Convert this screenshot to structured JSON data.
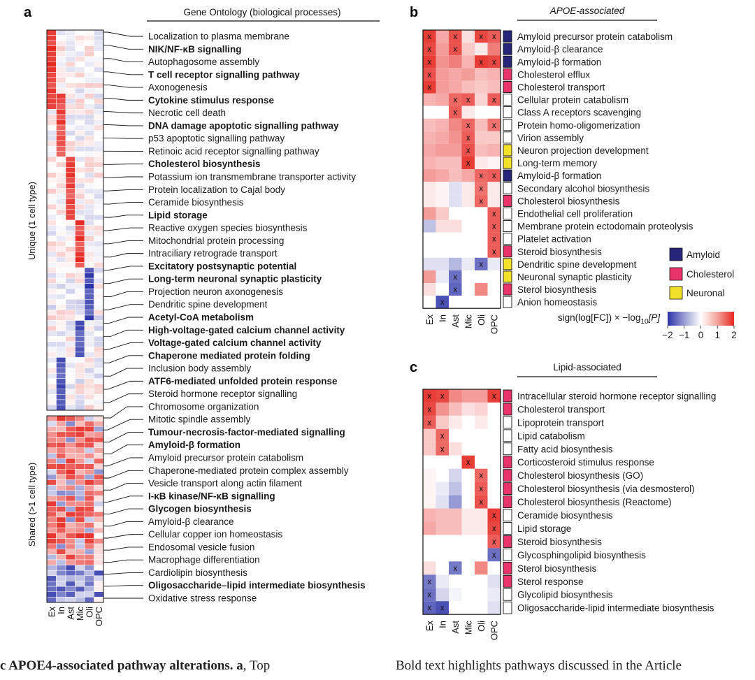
{
  "panel_a": {
    "letter": "a",
    "header": "Gene Ontology (biological processes)",
    "unique_label": "Unique (1 cell type)",
    "shared_label": "Shared (>1 cell type)",
    "columns": [
      "Ex",
      "In",
      "Ast",
      "Mic",
      "Oli",
      "OPC"
    ],
    "labels": [
      {
        "text": "Localization to plasma membrane",
        "bold": false
      },
      {
        "text": "NIK/NF-κB signalling",
        "bold": true
      },
      {
        "text": "Autophagosome assembly",
        "bold": false
      },
      {
        "text": "T cell receptor signalling pathway",
        "bold": true
      },
      {
        "text": "Axonogenesis",
        "bold": false
      },
      {
        "text": "Cytokine stimulus response",
        "bold": true
      },
      {
        "text": "Necrotic cell death",
        "bold": false
      },
      {
        "text": "DNA damage apoptotic signalling pathway",
        "bold": true
      },
      {
        "text": "p53 apoptotic signalling pathway",
        "bold": false
      },
      {
        "text": "Retinoic acid receptor signalling pathway",
        "bold": false
      },
      {
        "text": "Cholesterol biosynthesis",
        "bold": true
      },
      {
        "text": "Potassium ion transmembrane transporter activity",
        "bold": false
      },
      {
        "text": "Protein localization to Cajal body",
        "bold": false
      },
      {
        "text": "Ceramide biosynthesis",
        "bold": false
      },
      {
        "text": "Lipid storage",
        "bold": true
      },
      {
        "text": "Reactive oxygen species biosynthesis",
        "bold": false
      },
      {
        "text": "Mitochondrial protein processing",
        "bold": false
      },
      {
        "text": "Intraciliary retrograde transport",
        "bold": false
      },
      {
        "text": "Excitatory postsynaptic potential",
        "bold": true
      },
      {
        "text": "Long-term neuronal synaptic plasticity",
        "bold": true
      },
      {
        "text": "Projection neuron axonogenesis",
        "bold": false
      },
      {
        "text": "Dendritic spine development",
        "bold": false
      },
      {
        "text": "Acetyl-CoA metabolism",
        "bold": true
      },
      {
        "text": "High-voltage-gated calcium channel activity",
        "bold": true
      },
      {
        "text": "Voltage-gated calcium channel activity",
        "bold": true
      },
      {
        "text": "Chaperone mediated protein folding",
        "bold": true
      },
      {
        "text": "Inclusion body assembly",
        "bold": false
      },
      {
        "text": "ATF6-mediated unfolded protein response",
        "bold": true
      },
      {
        "text": "Steroid hormone receptor signalling",
        "bold": false
      },
      {
        "text": "Chromosome organization",
        "bold": false
      },
      {
        "text": "Mitotic spindle assembly",
        "bold": false
      },
      {
        "text": "Tumour-necrosis-factor-mediated signalling",
        "bold": true
      },
      {
        "text": "Amyloid-β formation",
        "bold": true
      },
      {
        "text": "Amyloid precursor protein catabolism",
        "bold": false
      },
      {
        "text": "Chaperone-mediated protein complex assembly",
        "bold": false
      },
      {
        "text": "Vesicle transport along actin filament",
        "bold": false
      },
      {
        "text": "I-κB kinase/NF-κB signalling",
        "bold": true
      },
      {
        "text": "Glycogen biosynthesis",
        "bold": true
      },
      {
        "text": "Amyloid-β clearance",
        "bold": false
      },
      {
        "text": "Cellular copper ion homeostasis",
        "bold": false
      },
      {
        "text": "Endosomal vesicle fusion",
        "bold": false
      },
      {
        "text": "Macrophage differentiation",
        "bold": false
      },
      {
        "text": "Cardiolipin biosynthesis",
        "bold": false
      },
      {
        "text": "Oligosaccharide–lipid intermediate biosynthesis",
        "bold": true
      },
      {
        "text": "Oxidative stress response",
        "bold": false
      }
    ]
  },
  "panel_b": {
    "letter": "b",
    "header": "APOE-associated",
    "columns": [
      "Ex",
      "In",
      "Ast",
      "Mic",
      "Oli",
      "OPC"
    ],
    "rows": [
      {
        "label": "Amyloid precursor protein catabolism",
        "cat": "amyloid",
        "values": [
          1.8,
          0.8,
          1.6,
          0.3,
          1.7,
          1.5
        ],
        "marks": [
          1,
          0,
          1,
          0,
          1,
          1
        ]
      },
      {
        "label": "Amyloid-β clearance",
        "cat": "amyloid",
        "values": [
          1.7,
          0.9,
          1.6,
          0.5,
          0.2,
          1.2
        ],
        "marks": [
          1,
          0,
          1,
          0,
          0,
          0
        ]
      },
      {
        "label": "Amyloid-β formation",
        "cat": "amyloid",
        "values": [
          1.8,
          1.0,
          1.2,
          0.7,
          1.8,
          1.7
        ],
        "marks": [
          1,
          0,
          0,
          0,
          1,
          1
        ]
      },
      {
        "label": "Cholesterol efflux",
        "cat": "cholesterol",
        "values": [
          1.6,
          0.9,
          0.8,
          0.9,
          0.6,
          0.7
        ],
        "marks": [
          1,
          0,
          0,
          0,
          0,
          0
        ]
      },
      {
        "label": "Cholesterol transport",
        "cat": "cholesterol",
        "values": [
          1.8,
          0.9,
          0.8,
          0.6,
          0.5,
          0.6
        ],
        "marks": [
          1,
          0,
          0,
          0,
          0,
          0
        ]
      },
      {
        "label": "Cellular protein catabolism",
        "cat": "none",
        "values": [
          0.7,
          0.8,
          1.4,
          1.5,
          0.4,
          1.5
        ],
        "marks": [
          0,
          0,
          1,
          1,
          0,
          1
        ]
      },
      {
        "label": "Class A receptors scavenging",
        "cat": "none",
        "values": [
          0.0,
          0.0,
          1.5,
          0.2,
          0.0,
          0.0
        ],
        "marks": [
          0,
          0,
          1,
          0,
          0,
          0
        ]
      },
      {
        "label": "Protein homo-oligomerization",
        "cat": "none",
        "values": [
          0.6,
          0.7,
          1.1,
          1.4,
          0.6,
          1.3
        ],
        "marks": [
          0,
          0,
          0,
          1,
          0,
          1
        ]
      },
      {
        "label": "Virion assembly",
        "cat": "none",
        "values": [
          0.7,
          0.8,
          1.0,
          1.5,
          0.5,
          0.5
        ],
        "marks": [
          0,
          0,
          0,
          1,
          0,
          0
        ]
      },
      {
        "label": "Neuron projection development",
        "cat": "neuronal",
        "values": [
          0.8,
          0.9,
          0.9,
          1.6,
          0.6,
          0.7
        ],
        "marks": [
          0,
          0,
          0,
          1,
          0,
          0
        ]
      },
      {
        "label": "Long-term memory",
        "cat": "neuronal",
        "values": [
          0.7,
          0.6,
          0.6,
          1.8,
          0.2,
          0.1
        ],
        "marks": [
          0,
          0,
          0,
          1,
          0,
          0
        ]
      },
      {
        "label": "Amyloid-β formation",
        "cat": "amyloid",
        "values": [
          0.9,
          0.8,
          0.6,
          0.8,
          1.4,
          1.5
        ],
        "marks": [
          0,
          0,
          0,
          0,
          1,
          1
        ]
      },
      {
        "label": "Secondary alcohol biosynthesis",
        "cat": "none",
        "values": [
          0.2,
          0.1,
          -0.3,
          0.2,
          1.3,
          0.2
        ],
        "marks": [
          0,
          0,
          0,
          0,
          1,
          0
        ]
      },
      {
        "label": "Cholesterol biosynthesis",
        "cat": "cholesterol",
        "values": [
          0.2,
          0.1,
          -0.3,
          0.2,
          1.4,
          0.2
        ],
        "marks": [
          0,
          0,
          0,
          0,
          1,
          0
        ]
      },
      {
        "label": "Endothelial cell proliferation",
        "cat": "none",
        "values": [
          0.9,
          0.5,
          0.0,
          0.0,
          0.0,
          1.5
        ],
        "marks": [
          0,
          0,
          0,
          0,
          0,
          1
        ]
      },
      {
        "label": "Membrane protein ectodomain proteolysis",
        "cat": "none",
        "values": [
          -0.6,
          0.3,
          0.3,
          0.0,
          0.0,
          1.5
        ],
        "marks": [
          0,
          0,
          0,
          0,
          0,
          1
        ]
      },
      {
        "label": "Platelet activation",
        "cat": "none",
        "values": [
          0.0,
          0.0,
          0.0,
          0.0,
          0.0,
          1.5
        ],
        "marks": [
          0,
          0,
          0,
          0,
          0,
          1
        ]
      },
      {
        "label": "Steroid biosynthesis",
        "cat": "cholesterol",
        "values": [
          0.0,
          0.0,
          0.0,
          0.0,
          0.0,
          1.5
        ],
        "marks": [
          0,
          0,
          0,
          0,
          0,
          1
        ]
      },
      {
        "label": "Dendritic spine development",
        "cat": "neuronal",
        "values": [
          -0.3,
          -0.3,
          -0.7,
          -0.2,
          -1.4,
          -0.2
        ],
        "marks": [
          0,
          0,
          0,
          0,
          1,
          0
        ]
      },
      {
        "label": "Neuronal synaptic plasticity",
        "cat": "neuronal",
        "values": [
          0.9,
          -0.2,
          -1.4,
          0.0,
          0.0,
          0.0
        ],
        "marks": [
          0,
          0,
          1,
          0,
          0,
          0
        ]
      },
      {
        "label": "Sterol biosynthesis",
        "cat": "cholesterol",
        "values": [
          0.3,
          0.0,
          -1.5,
          0.0,
          1.1,
          0.0
        ],
        "marks": [
          0,
          0,
          1,
          0,
          0,
          0
        ]
      },
      {
        "label": "Anion homeostasis",
        "cat": "none",
        "values": [
          0.0,
          -1.7,
          0.0,
          0.0,
          0.0,
          0.0
        ],
        "marks": [
          0,
          1,
          0,
          0,
          0,
          0
        ]
      }
    ],
    "legend": [
      {
        "key": "amyloid",
        "label": "Amyloid"
      },
      {
        "key": "cholesterol",
        "label": "Cholesterol"
      },
      {
        "key": "neuronal",
        "label": "Neuronal"
      }
    ],
    "scale_title_main": "sign(log[FC]) × −log",
    "scale_title_sub": "10",
    "scale_title_end": "[P]",
    "scale_ticks": [
      "−2",
      "−1",
      "0",
      "1",
      "2"
    ]
  },
  "panel_c": {
    "letter": "c",
    "header": "Lipid-associated",
    "columns": [
      "Ex",
      "In",
      "Ast",
      "Mic",
      "Oli",
      "OPC"
    ],
    "rows": [
      {
        "label": "Intracellular steroid hormone receptor signalling",
        "cat": "cholesterol",
        "values": [
          1.8,
          1.7,
          1.1,
          0.9,
          0.9,
          1.8
        ],
        "marks": [
          1,
          1,
          0,
          0,
          0,
          1
        ]
      },
      {
        "label": "Cholesterol transport",
        "cat": "cholesterol",
        "values": [
          1.7,
          1.0,
          0.6,
          0.3,
          0.4,
          0.0
        ],
        "marks": [
          1,
          0,
          0,
          0,
          0,
          0
        ]
      },
      {
        "label": "Lipoprotein transport",
        "cat": "none",
        "values": [
          1.5,
          0.5,
          0.2,
          0.0,
          0.2,
          0.0
        ],
        "marks": [
          1,
          0,
          0,
          0,
          0,
          0
        ]
      },
      {
        "label": "Lipid catabolism",
        "cat": "none",
        "values": [
          0.5,
          1.4,
          0.0,
          0.0,
          0.0,
          0.0
        ],
        "marks": [
          0,
          1,
          0,
          0,
          0,
          0
        ]
      },
      {
        "label": "Fatty acid biosynthesis",
        "cat": "none",
        "values": [
          0.5,
          1.4,
          0.3,
          0.0,
          0.0,
          0.0
        ],
        "marks": [
          0,
          1,
          0,
          0,
          0,
          0
        ]
      },
      {
        "label": "Corticosteroid stimulus response",
        "cat": "cholesterol",
        "values": [
          0.0,
          0.0,
          0.0,
          1.8,
          0.0,
          0.0
        ],
        "marks": [
          0,
          0,
          0,
          1,
          0,
          0
        ]
      },
      {
        "label": "Cholesterol biosynthesis (GO)",
        "cat": "cholesterol",
        "values": [
          0.1,
          0.0,
          -0.4,
          0.0,
          1.4,
          0.0
        ],
        "marks": [
          0,
          0,
          0,
          0,
          1,
          0
        ]
      },
      {
        "label": "Cholesterol biosynthesis (via desmosterol)",
        "cat": "cholesterol",
        "values": [
          0.1,
          -0.2,
          -0.6,
          0.0,
          1.5,
          0.0
        ],
        "marks": [
          0,
          0,
          0,
          0,
          1,
          0
        ]
      },
      {
        "label": "Cholesterol biosynthesis (Reactome)",
        "cat": "cholesterol",
        "values": [
          0.1,
          -0.3,
          -1.0,
          0.0,
          1.6,
          0.0
        ],
        "marks": [
          0,
          0,
          0,
          0,
          1,
          0
        ]
      },
      {
        "label": "Ceramide biosynthesis",
        "cat": "none",
        "values": [
          0.7,
          0.6,
          0.6,
          0.2,
          0.2,
          1.8
        ],
        "marks": [
          0,
          0,
          0,
          0,
          0,
          1
        ]
      },
      {
        "label": "Lipid storage",
        "cat": "none",
        "values": [
          0.8,
          0.6,
          0.6,
          0.2,
          0.2,
          1.7
        ],
        "marks": [
          0,
          0,
          0,
          0,
          0,
          1
        ]
      },
      {
        "label": "Steroid biosynthesis",
        "cat": "cholesterol",
        "values": [
          0.0,
          0.0,
          0.0,
          0.0,
          0.0,
          1.5
        ],
        "marks": [
          0,
          0,
          0,
          0,
          0,
          1
        ]
      },
      {
        "label": "Glycosphingolipid biosynthesis",
        "cat": "none",
        "values": [
          0.0,
          0.0,
          0.0,
          0.0,
          0.0,
          -1.4
        ],
        "marks": [
          0,
          0,
          0,
          0,
          0,
          1
        ]
      },
      {
        "label": "Sterol biosynthesis",
        "cat": "cholesterol",
        "values": [
          0.3,
          0.0,
          -1.3,
          0.0,
          1.1,
          0.0
        ],
        "marks": [
          0,
          0,
          1,
          0,
          0,
          0
        ]
      },
      {
        "label": "Sterol response",
        "cat": "cholesterol",
        "values": [
          -1.3,
          -0.2,
          0.0,
          0.0,
          0.0,
          -0.3
        ],
        "marks": [
          1,
          0,
          0,
          0,
          0,
          0
        ]
      },
      {
        "label": "Glycolipid biosynthesis",
        "cat": "none",
        "values": [
          -1.4,
          -0.4,
          -0.1,
          0.0,
          0.0,
          -0.2
        ],
        "marks": [
          1,
          0,
          0,
          0,
          0,
          0
        ]
      },
      {
        "label": "Oligosaccharide-lipid intermediate biosynthesis",
        "cat": "none",
        "values": [
          -1.5,
          -1.7,
          0.0,
          0.0,
          0.0,
          -0.3
        ],
        "marks": [
          1,
          1,
          0,
          0,
          0,
          0
        ]
      }
    ]
  },
  "colors": {
    "amyloid": "#27257a",
    "cholesterol": "#e8336b",
    "neuronal": "#f3e02b",
    "none": "#ffffff",
    "high": "#e52620",
    "low": "#2b33a8",
    "mid": "#ffffff"
  },
  "caption_left": {
    "bold": "c APOE4-associated pathway alterations. a",
    "rest": ", Top"
  },
  "caption_right": "Bold text highlights pathways discussed in the Article"
}
